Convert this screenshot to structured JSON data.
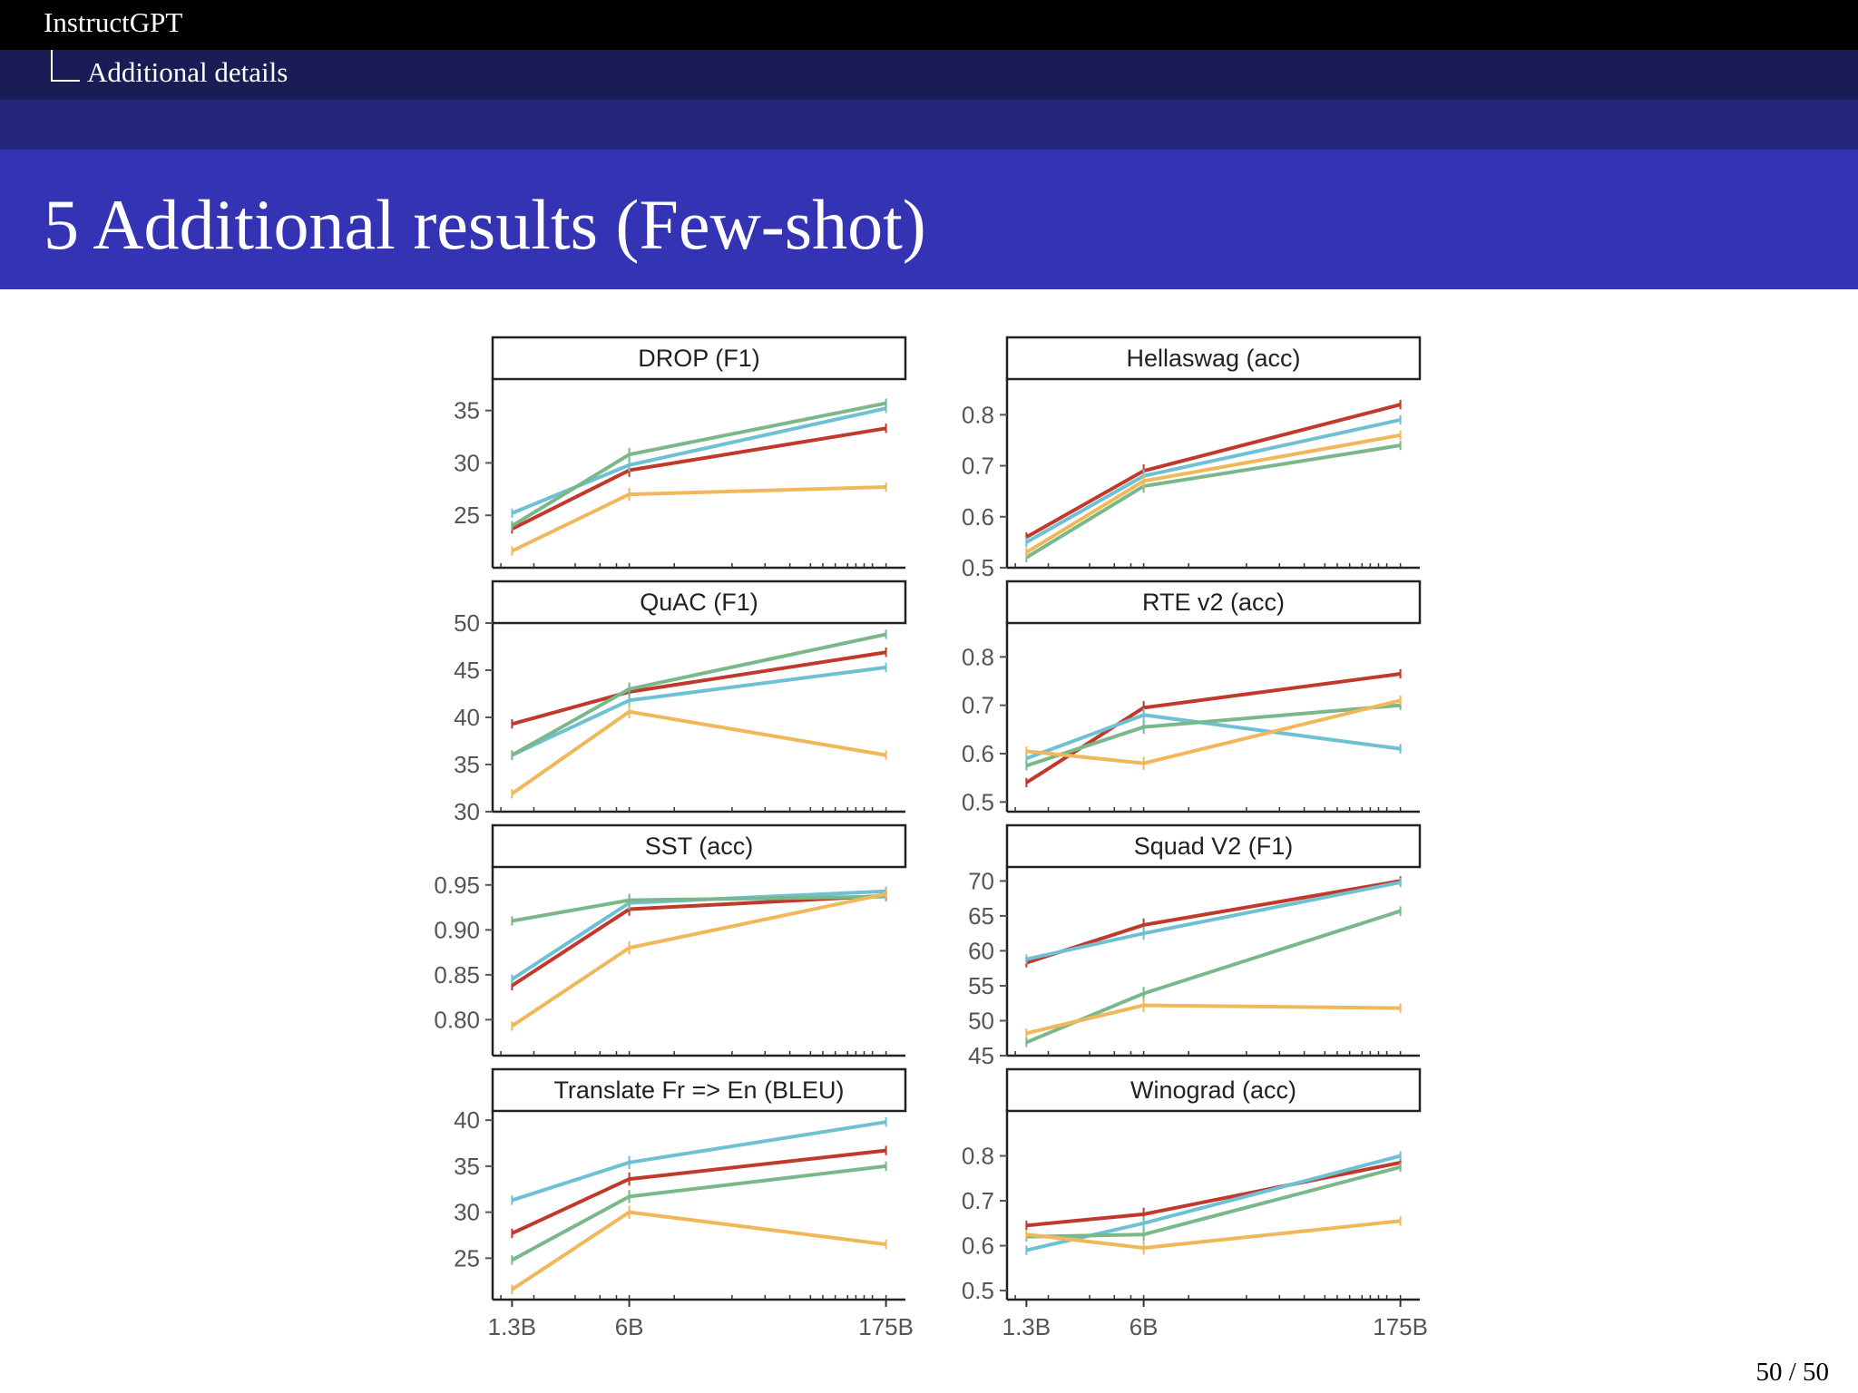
{
  "nav": {
    "title": "InstructGPT",
    "subsection": "Additional details"
  },
  "frame": {
    "title": "5 Additional results (Few-shot)"
  },
  "footer": {
    "page": "50 / 50"
  },
  "colors": {
    "red": "#c0392b",
    "blue": "#6ec1d4",
    "green": "#7ab88a",
    "orange": "#f0b85a"
  },
  "x_tick_labels": [
    "1.3B",
    "6B",
    "175B"
  ],
  "chart_data": [
    {
      "type": "line",
      "title": "DROP (F1)",
      "x": [
        "1.3B",
        "6B",
        "175B"
      ],
      "ylim": [
        20,
        38
      ],
      "yticks": [
        25,
        30,
        35
      ],
      "ytick_labels": [
        "25",
        "30",
        "35"
      ],
      "series": [
        {
          "name": "red",
          "color": "#c0392b",
          "values": [
            23.7,
            29.3,
            33.3
          ]
        },
        {
          "name": "blue",
          "color": "#6ec1d4",
          "values": [
            25.2,
            29.8,
            35.2
          ]
        },
        {
          "name": "green",
          "color": "#7ab88a",
          "values": [
            24.0,
            30.8,
            35.7
          ]
        },
        {
          "name": "orange",
          "color": "#f0b85a",
          "values": [
            21.6,
            27.0,
            27.7
          ]
        }
      ]
    },
    {
      "type": "line",
      "title": "Hellaswag (acc)",
      "x": [
        "1.3B",
        "6B",
        "175B"
      ],
      "ylim": [
        0.5,
        0.87
      ],
      "yticks": [
        0.5,
        0.6,
        0.7,
        0.8
      ],
      "ytick_labels": [
        "0.5",
        "0.6",
        "0.7",
        "0.8"
      ],
      "series": [
        {
          "name": "red",
          "color": "#c0392b",
          "values": [
            0.56,
            0.69,
            0.82
          ]
        },
        {
          "name": "blue",
          "color": "#6ec1d4",
          "values": [
            0.55,
            0.68,
            0.79
          ]
        },
        {
          "name": "green",
          "color": "#7ab88a",
          "values": [
            0.52,
            0.66,
            0.74
          ]
        },
        {
          "name": "orange",
          "color": "#f0b85a",
          "values": [
            0.53,
            0.67,
            0.76
          ]
        }
      ]
    },
    {
      "type": "line",
      "title": "QuAC (F1)",
      "x": [
        "1.3B",
        "6B",
        "175B"
      ],
      "ylim": [
        30,
        50
      ],
      "yticks": [
        30,
        35,
        40,
        45,
        50
      ],
      "ytick_labels": [
        "30",
        "35",
        "40",
        "45",
        "50"
      ],
      "series": [
        {
          "name": "red",
          "color": "#c0392b",
          "values": [
            39.3,
            42.7,
            46.9
          ]
        },
        {
          "name": "blue",
          "color": "#6ec1d4",
          "values": [
            36.0,
            41.8,
            45.3
          ]
        },
        {
          "name": "green",
          "color": "#7ab88a",
          "values": [
            36.0,
            43.0,
            48.8
          ]
        },
        {
          "name": "orange",
          "color": "#f0b85a",
          "values": [
            31.9,
            40.6,
            36.0
          ]
        }
      ]
    },
    {
      "type": "line",
      "title": "RTE v2 (acc)",
      "x": [
        "1.3B",
        "6B",
        "175B"
      ],
      "ylim": [
        0.48,
        0.87
      ],
      "yticks": [
        0.5,
        0.6,
        0.7,
        0.8
      ],
      "ytick_labels": [
        "0.5",
        "0.6",
        "0.7",
        "0.8"
      ],
      "series": [
        {
          "name": "red",
          "color": "#c0392b",
          "values": [
            0.54,
            0.695,
            0.765
          ]
        },
        {
          "name": "blue",
          "color": "#6ec1d4",
          "values": [
            0.59,
            0.68,
            0.61
          ]
        },
        {
          "name": "green",
          "color": "#7ab88a",
          "values": [
            0.575,
            0.655,
            0.7
          ]
        },
        {
          "name": "orange",
          "color": "#f0b85a",
          "values": [
            0.605,
            0.58,
            0.71
          ]
        }
      ]
    },
    {
      "type": "line",
      "title": "SST (acc)",
      "x": [
        "1.3B",
        "6B",
        "175B"
      ],
      "ylim": [
        0.76,
        0.97
      ],
      "yticks": [
        0.8,
        0.85,
        0.9,
        0.95
      ],
      "ytick_labels": [
        "0.80",
        "0.85",
        "0.90",
        "0.95"
      ],
      "series": [
        {
          "name": "red",
          "color": "#c0392b",
          "values": [
            0.838,
            0.923,
            0.938
          ]
        },
        {
          "name": "blue",
          "color": "#6ec1d4",
          "values": [
            0.845,
            0.93,
            0.943
          ]
        },
        {
          "name": "green",
          "color": "#7ab88a",
          "values": [
            0.91,
            0.933,
            0.937
          ]
        },
        {
          "name": "orange",
          "color": "#f0b85a",
          "values": [
            0.793,
            0.88,
            0.94
          ]
        }
      ]
    },
    {
      "type": "line",
      "title": "Squad V2 (F1)",
      "x": [
        "1.3B",
        "6B",
        "175B"
      ],
      "ylim": [
        45,
        72
      ],
      "yticks": [
        45,
        50,
        55,
        60,
        65,
        70
      ],
      "ytick_labels": [
        "45",
        "50",
        "55",
        "60",
        "65",
        "70"
      ],
      "series": [
        {
          "name": "red",
          "color": "#c0392b",
          "values": [
            58.3,
            63.7,
            70.0
          ]
        },
        {
          "name": "blue",
          "color": "#6ec1d4",
          "values": [
            58.8,
            62.5,
            69.8
          ]
        },
        {
          "name": "green",
          "color": "#7ab88a",
          "values": [
            46.9,
            53.9,
            65.7
          ]
        },
        {
          "name": "orange",
          "color": "#f0b85a",
          "values": [
            48.2,
            52.2,
            51.8
          ]
        }
      ]
    },
    {
      "type": "line",
      "title": "Translate Fr => En (BLEU)",
      "x": [
        "1.3B",
        "6B",
        "175B"
      ],
      "ylim": [
        20.5,
        41
      ],
      "yticks": [
        25,
        30,
        35,
        40
      ],
      "ytick_labels": [
        "25",
        "30",
        "35",
        "40"
      ],
      "series": [
        {
          "name": "red",
          "color": "#c0392b",
          "values": [
            27.7,
            33.6,
            36.7
          ]
        },
        {
          "name": "blue",
          "color": "#6ec1d4",
          "values": [
            31.3,
            35.4,
            39.8
          ]
        },
        {
          "name": "green",
          "color": "#7ab88a",
          "values": [
            24.8,
            31.7,
            35.0
          ]
        },
        {
          "name": "orange",
          "color": "#f0b85a",
          "values": [
            21.6,
            30.0,
            26.5
          ]
        }
      ]
    },
    {
      "type": "line",
      "title": "Winograd (acc)",
      "x": [
        "1.3B",
        "6B",
        "175B"
      ],
      "ylim": [
        0.48,
        0.9
      ],
      "yticks": [
        0.5,
        0.6,
        0.7,
        0.8
      ],
      "ytick_labels": [
        "0.5",
        "0.6",
        "0.7",
        "0.8"
      ],
      "series": [
        {
          "name": "red",
          "color": "#c0392b",
          "values": [
            0.645,
            0.67,
            0.785
          ]
        },
        {
          "name": "blue",
          "color": "#6ec1d4",
          "values": [
            0.59,
            0.65,
            0.8
          ]
        },
        {
          "name": "green",
          "color": "#7ab88a",
          "values": [
            0.62,
            0.625,
            0.775
          ]
        },
        {
          "name": "orange",
          "color": "#f0b85a",
          "values": [
            0.625,
            0.595,
            0.655
          ]
        }
      ]
    }
  ]
}
